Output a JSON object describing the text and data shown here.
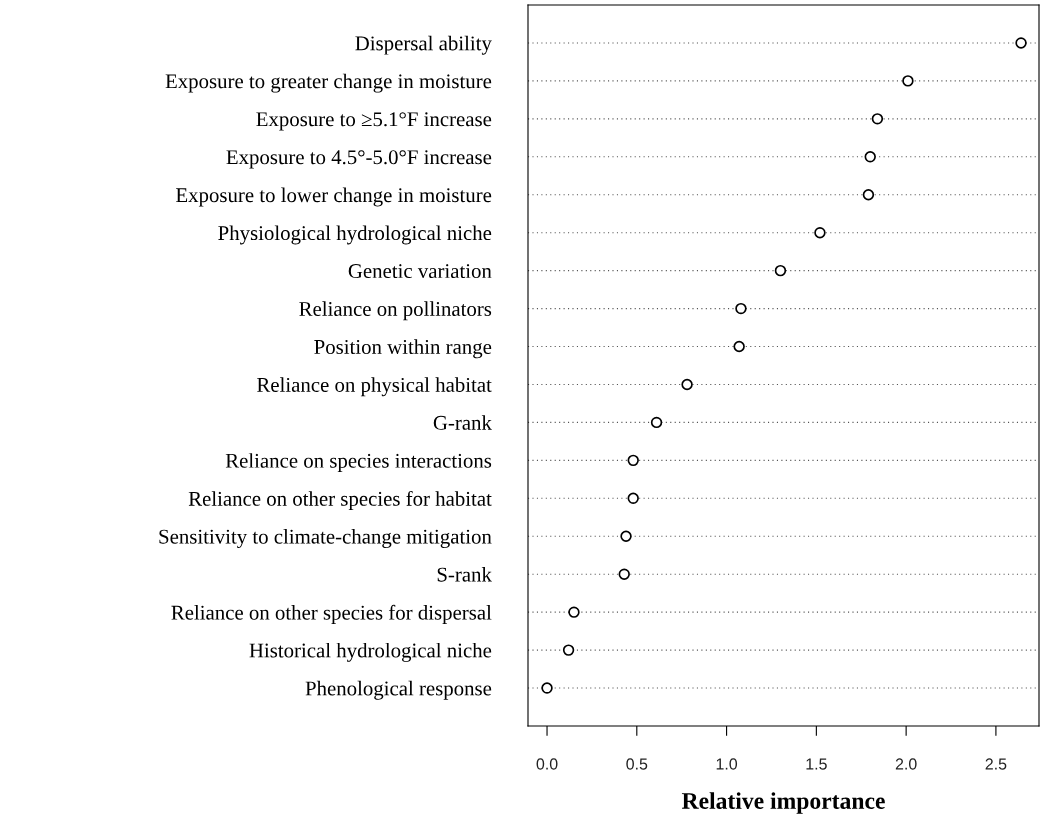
{
  "chart_data": {
    "type": "scatter",
    "xlabel": "Relative importance",
    "categories": [
      "Dispersal ability",
      "Exposure to greater change in moisture",
      "Exposure to ≥5.1°F increase",
      "Exposure to 4.5°-5.0°F increase",
      "Exposure to lower change in moisture",
      "Physiological hydrological niche",
      "Genetic variation",
      "Reliance on pollinators",
      "Position within range",
      "Reliance on physical habitat",
      "G-rank",
      "Reliance on species interactions",
      "Reliance on other species for habitat",
      "Sensitivity to climate-change mitigation",
      "S-rank",
      "Reliance on other species for dispersal",
      "Historical hydrological niche",
      "Phenological response"
    ],
    "orientation": "horizontal",
    "values": [
      2.64,
      2.01,
      1.84,
      1.8,
      1.79,
      1.52,
      1.3,
      1.08,
      1.07,
      0.78,
      0.61,
      0.48,
      0.48,
      0.44,
      0.43,
      0.15,
      0.12,
      0.0
    ],
    "color": "#000000",
    "marker": "circle",
    "grid": "y",
    "xlim": [
      -0.106,
      2.74
    ],
    "xticks": [
      {
        "value": 0,
        "label": "0.0"
      },
      {
        "value": 0.5,
        "label": "0.5"
      },
      {
        "value": 1,
        "label": "1.0"
      },
      {
        "value": 1.5,
        "label": "1.5"
      },
      {
        "value": 2,
        "label": "2.0"
      },
      {
        "value": 2.5,
        "label": "2.5"
      }
    ]
  }
}
